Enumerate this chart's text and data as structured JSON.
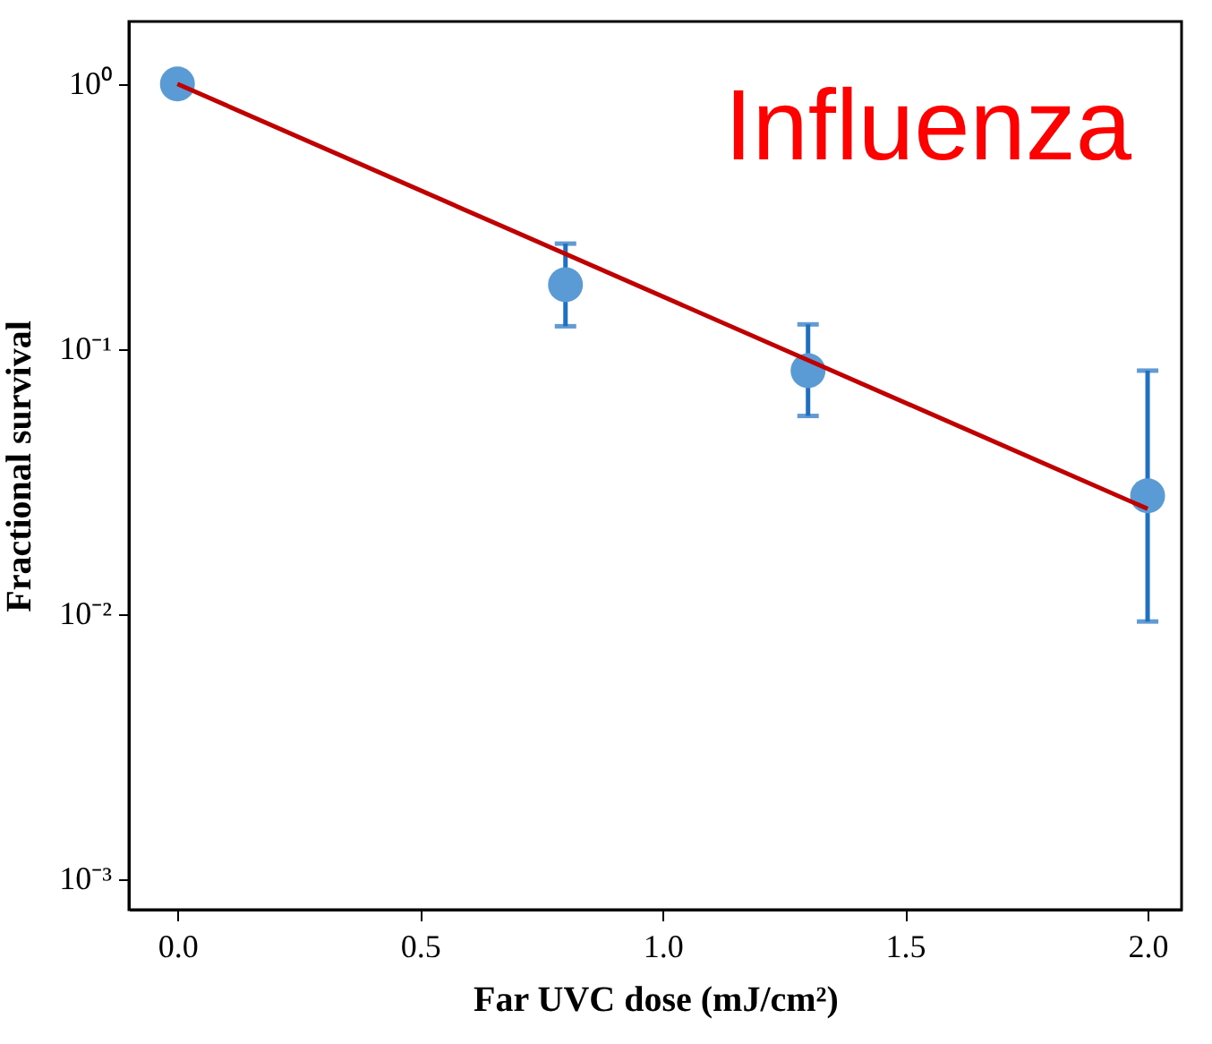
{
  "chart_data": {
    "type": "scatter",
    "xlabel": "Far UVC dose (mJ/cm²)",
    "ylabel": "Fractional survival",
    "annotations": [
      "Influenza"
    ],
    "log": "y",
    "grid": false,
    "xlim": [
      -0.1,
      2.07
    ],
    "ylim": [
      0.00077,
      1.72
    ],
    "xticks": [
      {
        "value": 0,
        "label": "0.0"
      },
      {
        "value": 0.5,
        "label": "0.5"
      },
      {
        "value": 1,
        "label": "1.0"
      },
      {
        "value": 1.5,
        "label": "1.5"
      },
      {
        "value": 2,
        "label": "2.0"
      }
    ],
    "yticks": [
      {
        "value": 0.001,
        "label": "10⁻³"
      },
      {
        "value": 0.01,
        "label": "10⁻²"
      },
      {
        "value": 0.1,
        "label": "10⁻¹"
      },
      {
        "value": 1,
        "label": "10⁰"
      }
    ],
    "series": [
      {
        "marker": "circle",
        "color": "#5b9bd5",
        "x": [
          0,
          0.8,
          1.3,
          2.0
        ],
        "values": [
          1.0,
          0.175,
          0.083,
          0.028
        ],
        "errors": [
          null,
          [
            0.122,
            0.25
          ],
          [
            0.056,
            0.124
          ],
          [
            0.0094,
            0.083
          ]
        ]
      },
      {
        "type": "line",
        "marker": "none",
        "color": "#c00000",
        "line_style": "solid",
        "x": [
          0,
          2.0
        ],
        "values": [
          1.0,
          0.025
        ]
      }
    ]
  }
}
